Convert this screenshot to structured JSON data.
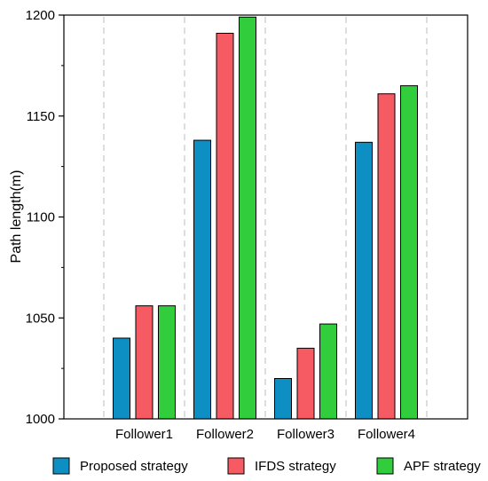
{
  "chart_data": {
    "type": "bar",
    "title": "",
    "xlabel": "",
    "ylabel": "Path length(m)",
    "ylim": [
      1000,
      1200
    ],
    "yticks": [
      1000,
      1050,
      1100,
      1150,
      1200
    ],
    "categories": [
      "Follower1",
      "Follower2",
      "Follower3",
      "Follower4"
    ],
    "series": [
      {
        "name": "Proposed strategy",
        "color": "#0e8fc4",
        "values": [
          1040,
          1138,
          1020,
          1137
        ]
      },
      {
        "name": "IFDS strategy",
        "color": "#f65a63",
        "values": [
          1056,
          1191,
          1035,
          1161
        ]
      },
      {
        "name": "APF strategy",
        "color": "#32cd3c",
        "values": [
          1056,
          1199,
          1047,
          1165
        ]
      }
    ],
    "grid": "vertical dashed between categories",
    "legend_placement": "bottom"
  }
}
